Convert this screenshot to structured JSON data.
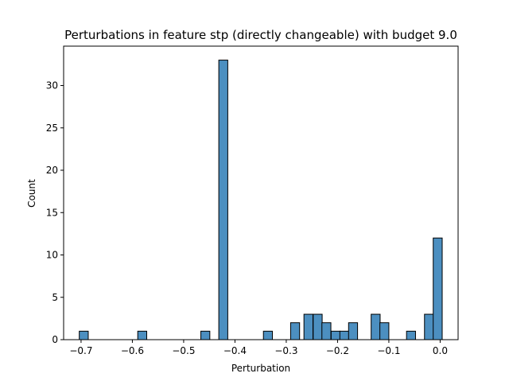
{
  "chart_data": {
    "type": "bar",
    "title": "Perturbations in feature stp (directly changeable) with budget 9.0",
    "xlabel": "Perturbation",
    "ylabel": "Count",
    "xlim": [
      -0.734,
      0.035
    ],
    "ylim": [
      0,
      34.65
    ],
    "x_ticks": [
      -0.7,
      -0.6,
      -0.5,
      -0.4,
      -0.3,
      -0.2,
      -0.1,
      0.0
    ],
    "x_tick_labels": [
      "−0.7",
      "−0.6",
      "−0.5",
      "−0.4",
      "−0.3",
      "−0.2",
      "−0.1",
      "0.0"
    ],
    "y_ticks": [
      0,
      5,
      10,
      15,
      20,
      25,
      30
    ],
    "y_tick_labels": [
      "0",
      "5",
      "10",
      "15",
      "20",
      "25",
      "30"
    ],
    "bin_width": 0.0175,
    "bin_start": [
      -0.7035,
      -0.5895,
      -0.4665,
      -0.4315,
      -0.3445,
      -0.2915,
      -0.2655,
      -0.2475,
      -0.2305,
      -0.2125,
      -0.1955,
      -0.1785,
      -0.1345,
      -0.1175,
      -0.0655,
      -0.0305,
      -0.0135
    ],
    "counts": [
      1,
      1,
      1,
      33,
      1,
      2,
      3,
      3,
      2,
      1,
      1,
      2,
      3,
      2,
      1,
      3,
      12
    ],
    "bar_color": "#4c8fc0",
    "bar_edge_color": "#000000",
    "grid": false,
    "legend": "none"
  }
}
